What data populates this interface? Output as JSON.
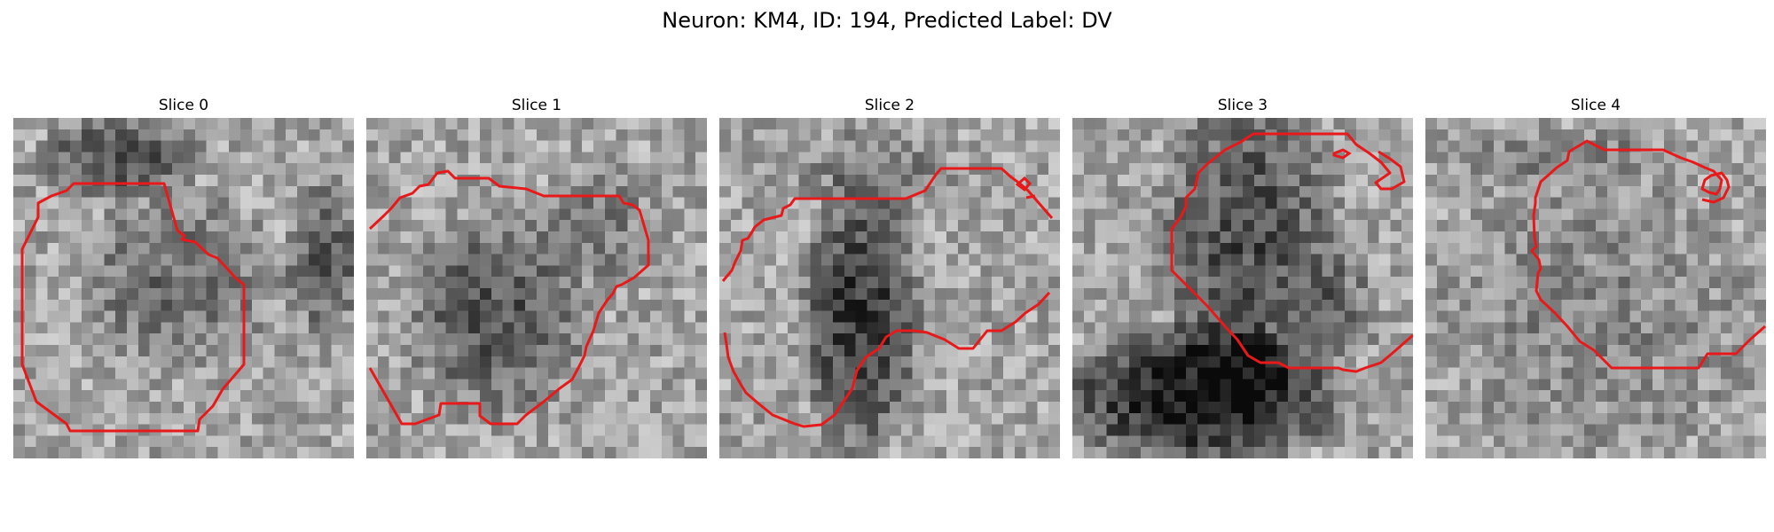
{
  "figure": {
    "title": "Neuron: KM4, ID: 194, Predicted Label: DV"
  },
  "colors": {
    "contour": "#e8191a",
    "background": "#ffffff"
  },
  "panels": [
    {
      "title": "Slice 0",
      "seed": 11
    },
    {
      "title": "Slice 1",
      "seed": 23
    },
    {
      "title": "Slice 2",
      "seed": 37
    },
    {
      "title": "Slice 3",
      "seed": 53
    },
    {
      "title": "Slice 4",
      "seed": 71
    }
  ]
}
